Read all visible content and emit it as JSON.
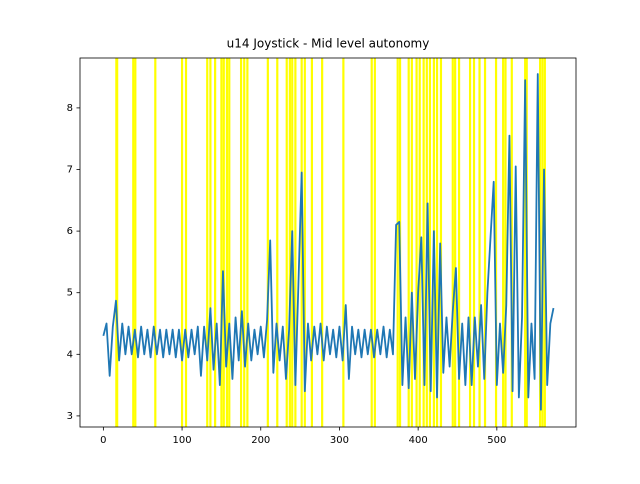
{
  "chart_data": {
    "type": "line",
    "title": "u14 Joystick - Mid level autonomy",
    "x": [
      0,
      4,
      8,
      12,
      16,
      20,
      24,
      28,
      32,
      36,
      40,
      44,
      48,
      52,
      56,
      60,
      64,
      68,
      72,
      76,
      80,
      84,
      88,
      92,
      96,
      100,
      104,
      108,
      112,
      116,
      120,
      124,
      128,
      132,
      136,
      140,
      144,
      148,
      152,
      156,
      160,
      164,
      168,
      172,
      176,
      180,
      184,
      188,
      192,
      196,
      200,
      204,
      208,
      212,
      216,
      220,
      224,
      228,
      232,
      236,
      240,
      244,
      248,
      252,
      256,
      260,
      264,
      268,
      272,
      276,
      280,
      284,
      288,
      292,
      296,
      300,
      304,
      308,
      312,
      316,
      320,
      324,
      328,
      332,
      336,
      340,
      344,
      348,
      352,
      356,
      360,
      364,
      368,
      372,
      376,
      380,
      384,
      388,
      392,
      396,
      400,
      404,
      408,
      412,
      416,
      420,
      424,
      428,
      432,
      436,
      440,
      444,
      448,
      452,
      456,
      460,
      464,
      468,
      472,
      476,
      480,
      484,
      488,
      492,
      496,
      500,
      504,
      508,
      512,
      516,
      520,
      524,
      528,
      532,
      536,
      540,
      544,
      548,
      552,
      556,
      560,
      564,
      568,
      572
    ],
    "series": [
      {
        "color": "#1f77b4",
        "values": [
          4.3,
          4.5,
          3.65,
          4.45,
          4.87,
          3.9,
          4.5,
          4.0,
          4.45,
          4.0,
          4.4,
          3.95,
          4.45,
          4.0,
          4.4,
          3.95,
          4.45,
          4.0,
          4.4,
          3.95,
          4.4,
          4.0,
          4.4,
          3.95,
          4.4,
          3.9,
          4.4,
          3.95,
          4.4,
          4.0,
          4.45,
          3.65,
          4.45,
          3.9,
          4.75,
          3.75,
          4.5,
          3.5,
          5.35,
          3.8,
          4.5,
          3.6,
          4.6,
          3.9,
          4.7,
          3.8,
          4.5,
          3.9,
          4.4,
          4.0,
          4.45,
          3.95,
          4.55,
          5.85,
          3.7,
          4.5,
          3.9,
          4.45,
          3.6,
          4.4,
          6.0,
          3.5,
          5.2,
          6.95,
          3.4,
          4.5,
          3.9,
          4.45,
          4.0,
          4.5,
          3.9,
          4.45,
          4.0,
          4.4,
          3.95,
          4.45,
          3.9,
          4.8,
          3.6,
          4.45,
          4.0,
          4.4,
          3.95,
          4.4,
          4.0,
          4.4,
          3.95,
          4.4,
          4.0,
          4.45,
          3.95,
          4.4,
          4.0,
          6.1,
          6.15,
          3.5,
          4.6,
          3.45,
          5.0,
          3.6,
          5.0,
          5.9,
          3.5,
          6.45,
          3.4,
          6.0,
          3.3,
          5.8,
          3.7,
          4.6,
          3.8,
          4.7,
          5.4,
          3.6,
          4.5,
          3.5,
          4.6,
          3.5,
          4.6,
          3.8,
          4.8,
          3.6,
          5.0,
          5.9,
          6.8,
          3.5,
          4.5,
          3.7,
          4.8,
          7.55,
          3.4,
          7.05,
          3.3,
          4.6,
          8.45,
          3.3,
          4.5,
          3.6,
          8.55,
          3.1,
          7.0,
          3.5,
          4.5,
          4.75
        ]
      }
    ],
    "vlines": {
      "color": "#ffff00",
      "x": [
        16.5,
        17.5,
        38,
        40.6,
        66,
        100,
        105,
        132,
        136,
        142,
        150,
        153,
        157,
        160,
        175,
        179,
        183,
        209,
        221,
        233,
        237,
        240,
        244,
        252,
        256,
        265,
        278,
        305,
        341,
        345,
        374,
        377,
        388,
        392,
        398,
        402,
        407,
        411,
        415,
        420,
        424,
        429,
        444,
        447,
        452,
        466,
        471,
        478,
        485,
        499,
        508,
        511,
        519,
        536,
        538,
        555,
        558,
        561
      ]
    },
    "xlim": [
      -29.7,
      600.6
    ],
    "ylim": [
      2.82,
      8.81
    ],
    "xticks": [
      0,
      100,
      200,
      300,
      400,
      500
    ],
    "yticks": [
      3,
      4,
      5,
      6,
      7,
      8
    ]
  }
}
